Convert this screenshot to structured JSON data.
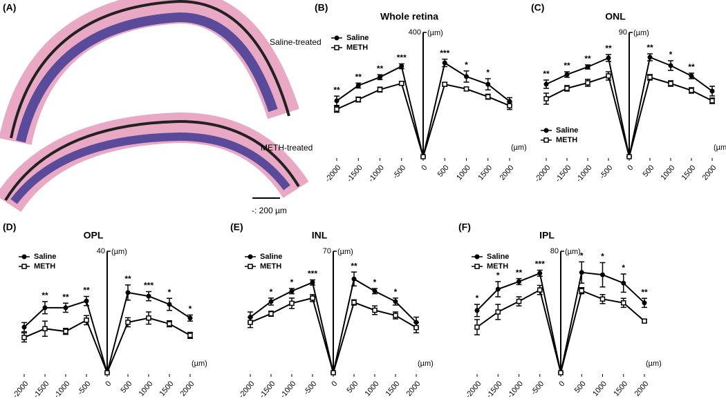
{
  "panel_a": {
    "label": "(A)",
    "top_caption": "Saline-treated",
    "bottom_caption": "METH-treated",
    "scale_bar": "-: 200 µm"
  },
  "chart_data": [
    {
      "type": "line",
      "panel_label": "(B)",
      "title": "Whole retina",
      "y_unit": "(µm)",
      "x_unit": "(µm)",
      "legend": "top-left",
      "x": [
        -2000,
        -1500,
        -1000,
        -500,
        0,
        500,
        1000,
        1500,
        2000
      ],
      "xlim": [
        -2000,
        2000
      ],
      "xticks": [
        -2000,
        -1500,
        -1000,
        -500,
        0,
        500,
        1000,
        1500,
        2000
      ],
      "ylim": [
        0,
        400
      ],
      "yticks": [
        400
      ],
      "series": [
        {
          "name": "Saline",
          "color": "#000000",
          "marker": "circle",
          "values": [
            180,
            229,
            256,
            291,
            0,
            302,
            258,
            233,
            178
          ],
          "errors": [
            15,
            8,
            8,
            8,
            0,
            12,
            18,
            18,
            12
          ],
          "annotations": [
            "**",
            "**",
            "**",
            "***",
            null,
            "***",
            "*",
            "*",
            null
          ]
        },
        {
          "name": "METH",
          "color": "#000000",
          "marker": "square-open",
          "values": [
            153,
            184,
            216,
            236,
            0,
            233,
            218,
            193,
            164
          ],
          "errors": [
            10,
            8,
            8,
            6,
            0,
            6,
            6,
            8,
            12
          ]
        }
      ]
    },
    {
      "type": "line",
      "panel_label": "(C)",
      "title": "ONL",
      "y_unit": "(µm)",
      "x_unit": "(µm)",
      "legend": "bottom-left",
      "x": [
        -2000,
        -1500,
        -1000,
        -500,
        0,
        500,
        1000,
        1500,
        2000
      ],
      "xlim": [
        -2000,
        2000
      ],
      "xticks": [
        -2000,
        -1500,
        -1000,
        -500,
        0,
        500,
        1000,
        1500,
        2000
      ],
      "ylim": [
        0,
        90
      ],
      "yticks": [
        90
      ],
      "series": [
        {
          "name": "Saline",
          "color": "#000000",
          "marker": "circle",
          "values": [
            52.5,
            59.5,
            65,
            71.5,
            0,
            72,
            66,
            58.5,
            47.5
          ],
          "errors": [
            3,
            2,
            1.5,
            2.5,
            0,
            2.5,
            3.5,
            2,
            3.5
          ],
          "annotations": [
            "**",
            "**",
            "**",
            "**",
            null,
            "**",
            "*",
            "**",
            null
          ]
        },
        {
          "name": "METH",
          "color": "#000000",
          "marker": "square-open",
          "values": [
            42,
            49.5,
            53.5,
            58.5,
            0,
            57.5,
            53,
            48,
            40.5
          ],
          "errors": [
            4,
            2,
            2.5,
            3,
            0,
            2,
            2,
            2,
            2
          ]
        }
      ]
    },
    {
      "type": "line",
      "panel_label": "(D)",
      "title": "OPL",
      "y_unit": "(µm)",
      "x_unit": "(µm)",
      "legend": "top-left",
      "x": [
        -2000,
        -1500,
        -1000,
        -500,
        0,
        500,
        1000,
        1500,
        2000
      ],
      "xlim": [
        -2000,
        2000
      ],
      "xticks": [
        -2000,
        -1500,
        -1000,
        -500,
        0,
        500,
        1000,
        1500,
        2000
      ],
      "ylim": [
        0,
        40
      ],
      "yticks": [
        40
      ],
      "series": [
        {
          "name": "Saline",
          "color": "#000000",
          "marker": "circle",
          "values": [
            15,
            21.4,
            21.4,
            23.6,
            0,
            26.4,
            25.2,
            22.5,
            18
          ],
          "errors": [
            1.5,
            2,
            1.5,
            1.5,
            0,
            2.5,
            1.5,
            2,
            1
          ],
          "annotations": [
            null,
            "**",
            "**",
            "**",
            null,
            "**",
            "***",
            "*",
            "*"
          ]
        },
        {
          "name": "METH",
          "color": "#000000",
          "marker": "square-open",
          "values": [
            11.6,
            14.5,
            13.6,
            17.3,
            0,
            16.6,
            18,
            16.1,
            12.3
          ],
          "errors": [
            1.5,
            2.5,
            1,
            1.5,
            0,
            1.5,
            2,
            1,
            1
          ]
        }
      ]
    },
    {
      "type": "line",
      "panel_label": "(E)",
      "title": "INL",
      "y_unit": "(µm)",
      "x_unit": "(µm)",
      "legend": "top-left",
      "x": [
        -2000,
        -1500,
        -1000,
        -500,
        0,
        500,
        1000,
        1500,
        2000
      ],
      "xlim": [
        -2000,
        2000
      ],
      "xticks": [
        -2000,
        -1500,
        -1000,
        -500,
        0,
        500,
        1000,
        1500,
        2000
      ],
      "ylim": [
        0,
        70
      ],
      "yticks": [
        70
      ],
      "series": [
        {
          "name": "Saline",
          "color": "#000000",
          "marker": "circle",
          "values": [
            32,
            41,
            47,
            52,
            0,
            54,
            47,
            41,
            29
          ],
          "errors": [
            3,
            2,
            1.5,
            1.5,
            0,
            4,
            1.5,
            2,
            3
          ],
          "annotations": [
            null,
            "*",
            "*",
            "***",
            null,
            "**",
            "*",
            "*",
            null
          ]
        },
        {
          "name": "METH",
          "color": "#000000",
          "marker": "square-open",
          "values": [
            29,
            34,
            40,
            43,
            0,
            40.5,
            36,
            33,
            26
          ],
          "errors": [
            3,
            1.5,
            3,
            2,
            0,
            1.5,
            2.5,
            2,
            3
          ]
        }
      ]
    },
    {
      "type": "line",
      "panel_label": "(F)",
      "title": "IPL",
      "y_unit": "(µm)",
      "x_unit": "(µm)",
      "legend": "top-left",
      "x": [
        -2000,
        -1500,
        -1000,
        -500,
        0,
        500,
        1000,
        1500,
        2000
      ],
      "xlim": [
        -2000,
        2000
      ],
      "xticks": [
        -2000,
        -1500,
        -1000,
        -500,
        0,
        500,
        1000,
        1500,
        2000
      ],
      "ylim": [
        0,
        80
      ],
      "yticks": [
        80
      ],
      "series": [
        {
          "name": "Saline",
          "color": "#000000",
          "marker": "circle",
          "values": [
            41,
            55,
            60,
            65.5,
            0,
            66,
            64.5,
            59,
            46
          ],
          "errors": [
            4,
            5,
            2,
            2,
            0,
            7,
            8,
            6,
            3
          ],
          "annotations": [
            "*",
            "*",
            "**",
            "***",
            null,
            "*",
            "*",
            "*",
            "**"
          ]
        },
        {
          "name": "METH",
          "color": "#000000",
          "marker": "square-open",
          "values": [
            30,
            40,
            47,
            54.5,
            0,
            54,
            48.5,
            46,
            34
          ],
          "errors": [
            5,
            5,
            3,
            3,
            0,
            2,
            3,
            3,
            1
          ]
        }
      ]
    }
  ]
}
